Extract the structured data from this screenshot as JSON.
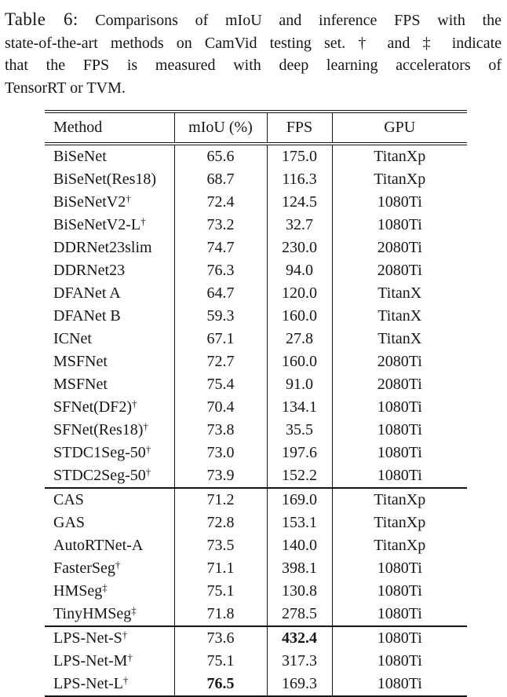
{
  "caption": {
    "label": "Table 6:",
    "lines": [
      "Comparisons of mIoU and inference FPS with the",
      "state-of-the-art methods on CamVid testing set. † and ‡ indicate",
      "that the FPS is measured with deep learning accelerators of",
      "TensorRT or TVM."
    ]
  },
  "table": {
    "columns": [
      "Method",
      "mIoU (%)",
      "FPS",
      "GPU"
    ],
    "sections": [
      {
        "rows": [
          {
            "method": "BiSeNet",
            "sup": "",
            "miou": "65.6",
            "fps": "175.0",
            "gpu": "TitanXp",
            "bold": ""
          },
          {
            "method": "BiSeNet(Res18)",
            "sup": "",
            "miou": "68.7",
            "fps": "116.3",
            "gpu": "TitanXp",
            "bold": ""
          },
          {
            "method": "BiSeNetV2",
            "sup": "†",
            "miou": "72.4",
            "fps": "124.5",
            "gpu": "1080Ti",
            "bold": ""
          },
          {
            "method": "BiSeNetV2-L",
            "sup": "†",
            "miou": "73.2",
            "fps": "32.7",
            "gpu": "1080Ti",
            "bold": ""
          },
          {
            "method": "DDRNet23slim",
            "sup": "",
            "miou": "74.7",
            "fps": "230.0",
            "gpu": "2080Ti",
            "bold": ""
          },
          {
            "method": "DDRNet23",
            "sup": "",
            "miou": "76.3",
            "fps": "94.0",
            "gpu": "2080Ti",
            "bold": ""
          },
          {
            "method": "DFANet A",
            "sup": "",
            "miou": "64.7",
            "fps": "120.0",
            "gpu": "TitanX",
            "bold": ""
          },
          {
            "method": "DFANet B",
            "sup": "",
            "miou": "59.3",
            "fps": "160.0",
            "gpu": "TitanX",
            "bold": ""
          },
          {
            "method": "ICNet",
            "sup": "",
            "miou": "67.1",
            "fps": "27.8",
            "gpu": "TitanX",
            "bold": ""
          },
          {
            "method": "MSFNet",
            "sup": "",
            "miou": "72.7",
            "fps": "160.0",
            "gpu": "2080Ti",
            "bold": ""
          },
          {
            "method": "MSFNet",
            "sup": "",
            "miou": "75.4",
            "fps": "91.0",
            "gpu": "2080Ti",
            "bold": ""
          },
          {
            "method": "SFNet(DF2)",
            "sup": "†",
            "miou": "70.4",
            "fps": "134.1",
            "gpu": "1080Ti",
            "bold": ""
          },
          {
            "method": "SFNet(Res18)",
            "sup": "†",
            "miou": "73.8",
            "fps": "35.5",
            "gpu": "1080Ti",
            "bold": ""
          },
          {
            "method": "STDC1Seg-50",
            "sup": "†",
            "miou": "73.0",
            "fps": "197.6",
            "gpu": "1080Ti",
            "bold": ""
          },
          {
            "method": "STDC2Seg-50",
            "sup": "†",
            "miou": "73.9",
            "fps": "152.2",
            "gpu": "1080Ti",
            "bold": ""
          }
        ]
      },
      {
        "rows": [
          {
            "method": "CAS",
            "sup": "",
            "miou": "71.2",
            "fps": "169.0",
            "gpu": "TitanXp",
            "bold": ""
          },
          {
            "method": "GAS",
            "sup": "",
            "miou": "72.8",
            "fps": "153.1",
            "gpu": "TitanXp",
            "bold": ""
          },
          {
            "method": "AutoRTNet-A",
            "sup": "",
            "miou": "73.5",
            "fps": "140.0",
            "gpu": "TitanXp",
            "bold": ""
          },
          {
            "method": "FasterSeg",
            "sup": "†",
            "miou": "71.1",
            "fps": "398.1",
            "gpu": "1080Ti",
            "bold": ""
          },
          {
            "method": "HMSeg",
            "sup": "‡",
            "miou": "75.1",
            "fps": "130.8",
            "gpu": "1080Ti",
            "bold": ""
          },
          {
            "method": "TinyHMSeg",
            "sup": "‡",
            "miou": "71.8",
            "fps": "278.5",
            "gpu": "1080Ti",
            "bold": ""
          }
        ]
      },
      {
        "rows": [
          {
            "method": "LPS-Net-S",
            "sup": "†",
            "miou": "73.6",
            "fps": "432.4",
            "gpu": "1080Ti",
            "bold": "fps"
          },
          {
            "method": "LPS-Net-M",
            "sup": "†",
            "miou": "75.1",
            "fps": "317.3",
            "gpu": "1080Ti",
            "bold": ""
          },
          {
            "method": "LPS-Net-L",
            "sup": "†",
            "miou": "76.5",
            "fps": "169.3",
            "gpu": "1080Ti",
            "bold": "miou"
          }
        ]
      }
    ]
  },
  "colors": {
    "text": "#161616",
    "background": "#ffffff",
    "rule": "#161616"
  }
}
